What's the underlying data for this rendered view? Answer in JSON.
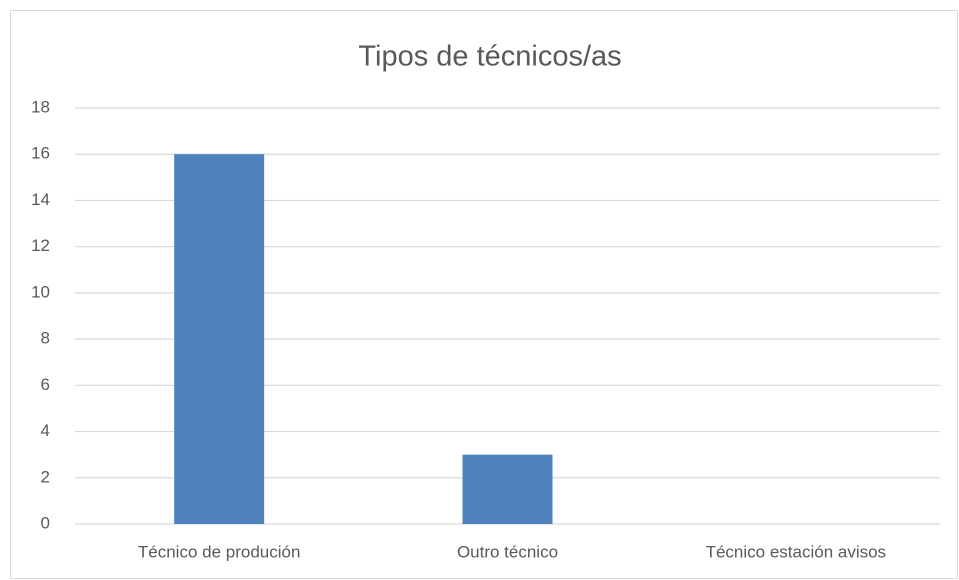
{
  "chart_data": {
    "type": "bar",
    "title": "Tipos de técnicos/as",
    "categories": [
      "Técnico de produción",
      "Outro técnico",
      "Técnico estación avisos"
    ],
    "values": [
      16,
      3,
      0
    ],
    "color": "#4f81bd",
    "ylim": [
      0,
      18
    ],
    "yticks": [
      0,
      2,
      4,
      6,
      8,
      10,
      12,
      14,
      16,
      18
    ],
    "grid": true
  }
}
